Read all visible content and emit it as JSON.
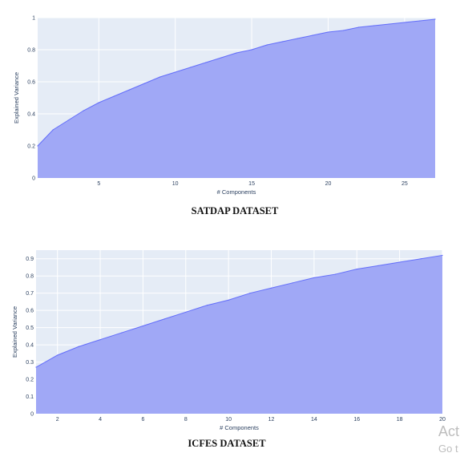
{
  "charts": [
    {
      "type": "area",
      "xlabel": "# Components",
      "ylabel": "Explained Variance",
      "caption": "SATDAP DATASET",
      "xlim": [
        1,
        27
      ],
      "ylim": [
        0,
        1.0
      ],
      "x_ticks": [
        5,
        10,
        15,
        20,
        25
      ],
      "x_tick_labels": [
        "5",
        "10",
        "15",
        "20",
        "25"
      ],
      "y_ticks": [
        0,
        0.2,
        0.4,
        0.6,
        0.8,
        1
      ],
      "y_tick_labels": [
        "0",
        "0.2",
        "0.4",
        "0.6",
        "0.8",
        "1"
      ],
      "grid": true,
      "plot_background": "#e5ecf6",
      "fill_color": "#a0a8f6",
      "line_color": "#636efa",
      "x": [
        1,
        2,
        3,
        4,
        5,
        6,
        7,
        8,
        9,
        10,
        11,
        12,
        13,
        14,
        15,
        16,
        17,
        18,
        19,
        20,
        21,
        22,
        23,
        24,
        25,
        26,
        27
      ],
      "y": [
        0.2,
        0.3,
        0.36,
        0.42,
        0.47,
        0.51,
        0.55,
        0.59,
        0.63,
        0.66,
        0.69,
        0.72,
        0.75,
        0.78,
        0.8,
        0.83,
        0.85,
        0.87,
        0.89,
        0.91,
        0.92,
        0.94,
        0.95,
        0.96,
        0.97,
        0.98,
        0.99
      ]
    },
    {
      "type": "area",
      "xlabel": "# Components",
      "ylabel": "Explained Variance",
      "caption": "ICFES DATASET",
      "xlim": [
        1,
        20
      ],
      "ylim": [
        0,
        0.95
      ],
      "x_ticks": [
        2,
        4,
        6,
        8,
        10,
        12,
        14,
        16,
        18,
        20
      ],
      "x_tick_labels": [
        "2",
        "4",
        "6",
        "8",
        "10",
        "12",
        "14",
        "16",
        "18",
        "20"
      ],
      "y_ticks": [
        0,
        0.1,
        0.2,
        0.3,
        0.4,
        0.5,
        0.6,
        0.7,
        0.8,
        0.9
      ],
      "y_tick_labels": [
        "0",
        "0.1",
        "0.2",
        "0.3",
        "0.4",
        "0.5",
        "0.6",
        "0.7",
        "0.8",
        "0.9"
      ],
      "grid": true,
      "plot_background": "#e5ecf6",
      "fill_color": "#a0a8f6",
      "line_color": "#636efa",
      "x": [
        1,
        2,
        3,
        4,
        5,
        6,
        7,
        8,
        9,
        10,
        11,
        12,
        13,
        14,
        15,
        16,
        17,
        18,
        19,
        20
      ],
      "y": [
        0.27,
        0.34,
        0.39,
        0.43,
        0.47,
        0.51,
        0.55,
        0.59,
        0.63,
        0.66,
        0.7,
        0.73,
        0.76,
        0.79,
        0.81,
        0.84,
        0.86,
        0.88,
        0.9,
        0.92
      ]
    }
  ],
  "watermark": {
    "line1": "Act",
    "line2": "Go t"
  }
}
